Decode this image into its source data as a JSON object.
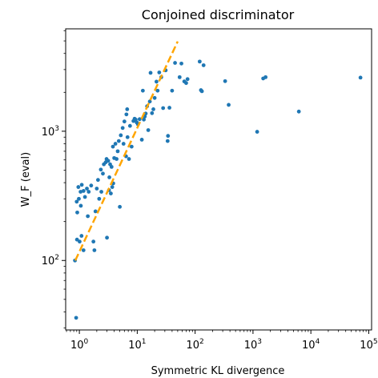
{
  "chart_data": {
    "type": "scatter",
    "title": "Conjoined discriminator",
    "xlabel": "Symmetric KL divergence",
    "ylabel": "W_F (eval)",
    "xscale": "log",
    "yscale": "log",
    "xlim": [
      0.58,
      112000
    ],
    "ylim": [
      29,
      6200
    ],
    "grid": false,
    "legend": "none",
    "x_ticks": [
      {
        "base": "10",
        "exp": "0",
        "value": 1
      },
      {
        "base": "10",
        "exp": "1",
        "value": 10
      },
      {
        "base": "10",
        "exp": "2",
        "value": 100
      },
      {
        "base": "10",
        "exp": "3",
        "value": 1000
      },
      {
        "base": "10",
        "exp": "4",
        "value": 10000
      },
      {
        "base": "10",
        "exp": "5",
        "value": 100000
      }
    ],
    "y_ticks": [
      {
        "base": "10",
        "exp": "2",
        "value": 100
      },
      {
        "base": "10",
        "exp": "3",
        "value": 1000
      }
    ],
    "colors": {
      "points": "#1f77b4",
      "trend": "#ffa500"
    },
    "series": [
      {
        "type": "scatter",
        "points": [
          [
            0.88,
            36
          ],
          [
            0.84,
            100
          ],
          [
            0.91,
            145
          ],
          [
            1.01,
            140
          ],
          [
            1.18,
            120
          ],
          [
            1.09,
            155
          ],
          [
            0.92,
            235
          ],
          [
            1.06,
            265
          ],
          [
            0.9,
            285
          ],
          [
            0.98,
            300
          ],
          [
            1.05,
            340
          ],
          [
            0.96,
            370
          ],
          [
            1.18,
            345
          ],
          [
            1.1,
            385
          ],
          [
            1.35,
            360
          ],
          [
            1.45,
            340
          ],
          [
            1.6,
            380
          ],
          [
            1.25,
            310
          ],
          [
            1.4,
            220
          ],
          [
            1.75,
            140
          ],
          [
            1.82,
            120
          ],
          [
            1.9,
            240
          ],
          [
            2.2,
            300
          ],
          [
            2.0,
            360
          ],
          [
            2.4,
            340
          ],
          [
            2.1,
            420
          ],
          [
            2.35,
            505
          ],
          [
            2.55,
            470
          ],
          [
            2.65,
            555
          ],
          [
            2.85,
            575
          ],
          [
            2.95,
            610
          ],
          [
            3.15,
            590
          ],
          [
            3.4,
            555
          ],
          [
            3.3,
            440
          ],
          [
            3.25,
            350
          ],
          [
            3.5,
            330
          ],
          [
            3.0,
            150
          ],
          [
            3.7,
            370
          ],
          [
            3.85,
            395
          ],
          [
            3.6,
            530
          ],
          [
            4.0,
            620
          ],
          [
            4.4,
            610
          ],
          [
            3.8,
            760
          ],
          [
            4.2,
            800
          ],
          [
            4.6,
            700
          ],
          [
            4.8,
            840
          ],
          [
            5.2,
            930
          ],
          [
            5.0,
            260
          ],
          [
            5.6,
            1060
          ],
          [
            6.0,
            1190
          ],
          [
            5.8,
            800
          ],
          [
            6.4,
            640
          ],
          [
            6.8,
            900
          ],
          [
            6.5,
            1350
          ],
          [
            6.7,
            1480
          ],
          [
            7.2,
            610
          ],
          [
            7.5,
            1100
          ],
          [
            8.0,
            760
          ],
          [
            8.6,
            1200
          ],
          [
            9.0,
            1250
          ],
          [
            9.4,
            1230
          ],
          [
            9.8,
            1170
          ],
          [
            10.3,
            1130
          ],
          [
            11.0,
            1240
          ],
          [
            12.0,
            860
          ],
          [
            12.5,
            2060
          ],
          [
            13.0,
            1230
          ],
          [
            13.5,
            1300
          ],
          [
            14.0,
            1370
          ],
          [
            14.8,
            1560
          ],
          [
            15.5,
            1020
          ],
          [
            16.5,
            1700
          ],
          [
            17.0,
            2830
          ],
          [
            18.0,
            1380
          ],
          [
            19.0,
            1480
          ],
          [
            20.0,
            1810
          ],
          [
            21.5,
            2420
          ],
          [
            22.5,
            2060
          ],
          [
            24.0,
            2850
          ],
          [
            26.0,
            2620
          ],
          [
            28.0,
            1510
          ],
          [
            31.0,
            2960
          ],
          [
            34.0,
            920
          ],
          [
            33.5,
            840
          ],
          [
            36.0,
            1520
          ],
          [
            40.0,
            2060
          ],
          [
            45.0,
            3380
          ],
          [
            54.0,
            2620
          ],
          [
            58.0,
            3340
          ],
          [
            65.0,
            2430
          ],
          [
            70.0,
            2360
          ],
          [
            74.0,
            2530
          ],
          [
            120,
            3460
          ],
          [
            126,
            2080
          ],
          [
            131,
            2040
          ],
          [
            140,
            3240
          ],
          [
            330,
            2440
          ],
          [
            380,
            1600
          ],
          [
            1180,
            990
          ],
          [
            1500,
            2560
          ],
          [
            1650,
            2620
          ],
          [
            6200,
            1420
          ],
          [
            72000,
            2600
          ]
        ]
      },
      {
        "type": "line",
        "style": "dashed",
        "points": [
          [
            0.85,
            100
          ],
          [
            50,
            4950
          ]
        ]
      }
    ]
  }
}
